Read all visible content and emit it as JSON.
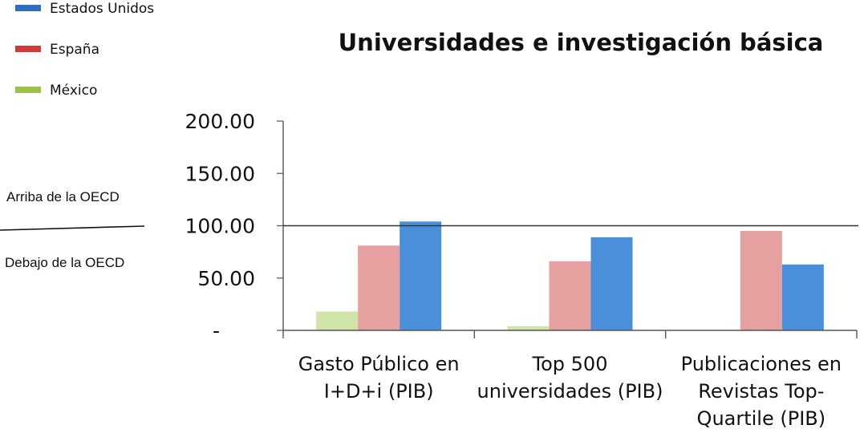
{
  "chart_data": {
    "type": "bar",
    "title": "Universidades e investigación básica",
    "categories": [
      [
        "Gasto Público en",
        "I+D+i  (PIB)"
      ],
      [
        "Top 500",
        "universidades (PIB)"
      ],
      [
        "Publicaciones  en",
        "Revistas Top-",
        "Quartile (PIB)"
      ]
    ],
    "series": [
      {
        "name": "México",
        "color": "#cfe4a6",
        "legend_color": "#9bc34a",
        "values": [
          18,
          4,
          null
        ]
      },
      {
        "name": "España",
        "color": "#e6a0a0",
        "legend_color": "#d23a3a",
        "values": [
          81,
          66,
          95
        ]
      },
      {
        "name": "Estados Unidos",
        "color": "#4a8fd9",
        "legend_color": "#2e6fc4",
        "values": [
          104,
          89,
          63
        ]
      }
    ],
    "legend_order": [
      "Estados Unidos",
      "España",
      "México"
    ],
    "legend_position": "top-left",
    "ylim": [
      0,
      200
    ],
    "yticks": [
      {
        "value": 0,
        "label": "-"
      },
      {
        "value": 50,
        "label": "50.00"
      },
      {
        "value": 100,
        "label": "100.00"
      },
      {
        "value": 150,
        "label": "150.00"
      },
      {
        "value": 200,
        "label": "200.00"
      }
    ],
    "reference_line": 100,
    "grid": false,
    "annotations": {
      "above": "Arriba de la OECD",
      "below": "Debajo  de la OECD"
    }
  }
}
